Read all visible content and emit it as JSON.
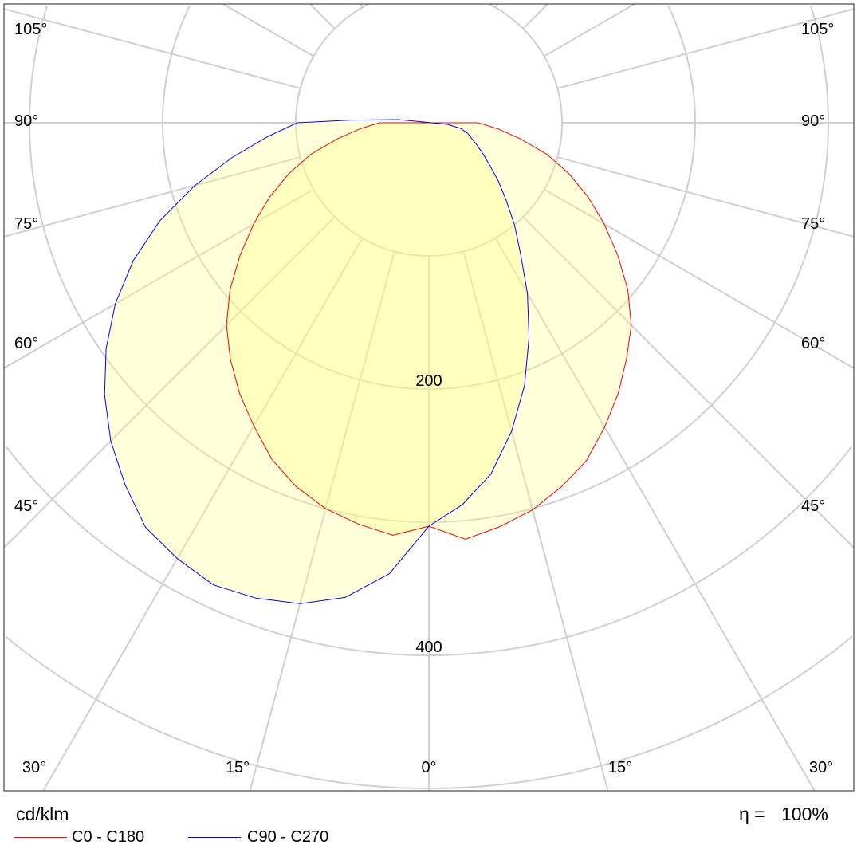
{
  "chart_data": {
    "type": "polar",
    "title": "",
    "unit_label": "cd/klm",
    "efficiency_label": "η =",
    "efficiency_value": "100%",
    "radial_ticks": [
      100,
      200,
      300,
      400,
      500,
      600
    ],
    "radial_tick_labels": [
      {
        "value": 200,
        "text": "200"
      },
      {
        "value": 400,
        "text": "400"
      }
    ],
    "angle_grid_step_deg": 15,
    "angle_labels": {
      "left": [
        "105°",
        "90°",
        "75°",
        "60°",
        "45°"
      ],
      "right": [
        "105°",
        "90°",
        "75°",
        "60°",
        "45°"
      ],
      "bottom": [
        "30°",
        "15°",
        "0°",
        "15°",
        "30°"
      ]
    },
    "grid": true,
    "legend_position": "bottom-left",
    "series": [
      {
        "name": "C0 - C180",
        "color": "#ff0000",
        "note": "angle in degrees from nadir; negative = C180 side (left), positive = C0 side (right)",
        "points": [
          [
            -90,
            37
          ],
          [
            -85,
            52
          ],
          [
            -80,
            70
          ],
          [
            -75,
            92
          ],
          [
            -70,
            112
          ],
          [
            -65,
            132
          ],
          [
            -60,
            152
          ],
          [
            -55,
            173
          ],
          [
            -50,
            195
          ],
          [
            -45,
            215
          ],
          [
            -40,
            232
          ],
          [
            -35,
            248
          ],
          [
            -30,
            263
          ],
          [
            -25,
            279
          ],
          [
            -20,
            291
          ],
          [
            -15,
            300
          ],
          [
            -10,
            306
          ],
          [
            -5,
            311
          ],
          [
            0,
            303
          ],
          [
            5,
            314
          ],
          [
            10,
            308
          ],
          [
            15,
            301
          ],
          [
            20,
            291
          ],
          [
            25,
            280
          ],
          [
            30,
            264
          ],
          [
            35,
            248
          ],
          [
            40,
            231
          ],
          [
            45,
            215
          ],
          [
            50,
            195
          ],
          [
            55,
            173
          ],
          [
            60,
            152
          ],
          [
            65,
            132
          ],
          [
            70,
            112
          ],
          [
            75,
            92
          ],
          [
            80,
            70
          ],
          [
            85,
            52
          ],
          [
            90,
            37
          ]
        ]
      },
      {
        "name": "C90 - C270",
        "color": "#0000ff",
        "note": "negative = C270 side (left), positive = C90 side (right)",
        "points": [
          [
            -96,
            23
          ],
          [
            -92,
            59
          ],
          [
            -90,
            99
          ],
          [
            -85,
            122
          ],
          [
            -80,
            150
          ],
          [
            -75,
            182
          ],
          [
            -70,
            215
          ],
          [
            -65,
            245
          ],
          [
            -60,
            272
          ],
          [
            -55,
            296
          ],
          [
            -50,
            318
          ],
          [
            -45,
            338
          ],
          [
            -40,
            355
          ],
          [
            -35,
            371
          ],
          [
            -30,
            378
          ],
          [
            -25,
            383
          ],
          [
            -20,
            380
          ],
          [
            -15,
            374
          ],
          [
            -10,
            362
          ],
          [
            -5,
            340
          ],
          [
            0,
            303
          ],
          [
            5,
            288
          ],
          [
            10,
            268
          ],
          [
            15,
            240
          ],
          [
            20,
            210
          ],
          [
            25,
            178
          ],
          [
            30,
            148
          ],
          [
            35,
            120
          ],
          [
            40,
            100
          ],
          [
            45,
            82
          ],
          [
            50,
            68
          ],
          [
            55,
            56
          ],
          [
            60,
            47
          ],
          [
            65,
            40
          ],
          [
            70,
            34
          ],
          [
            75,
            30
          ],
          [
            80,
            24
          ],
          [
            85,
            14
          ],
          [
            90,
            2
          ]
        ]
      }
    ],
    "fill_color": "#ffff80"
  }
}
